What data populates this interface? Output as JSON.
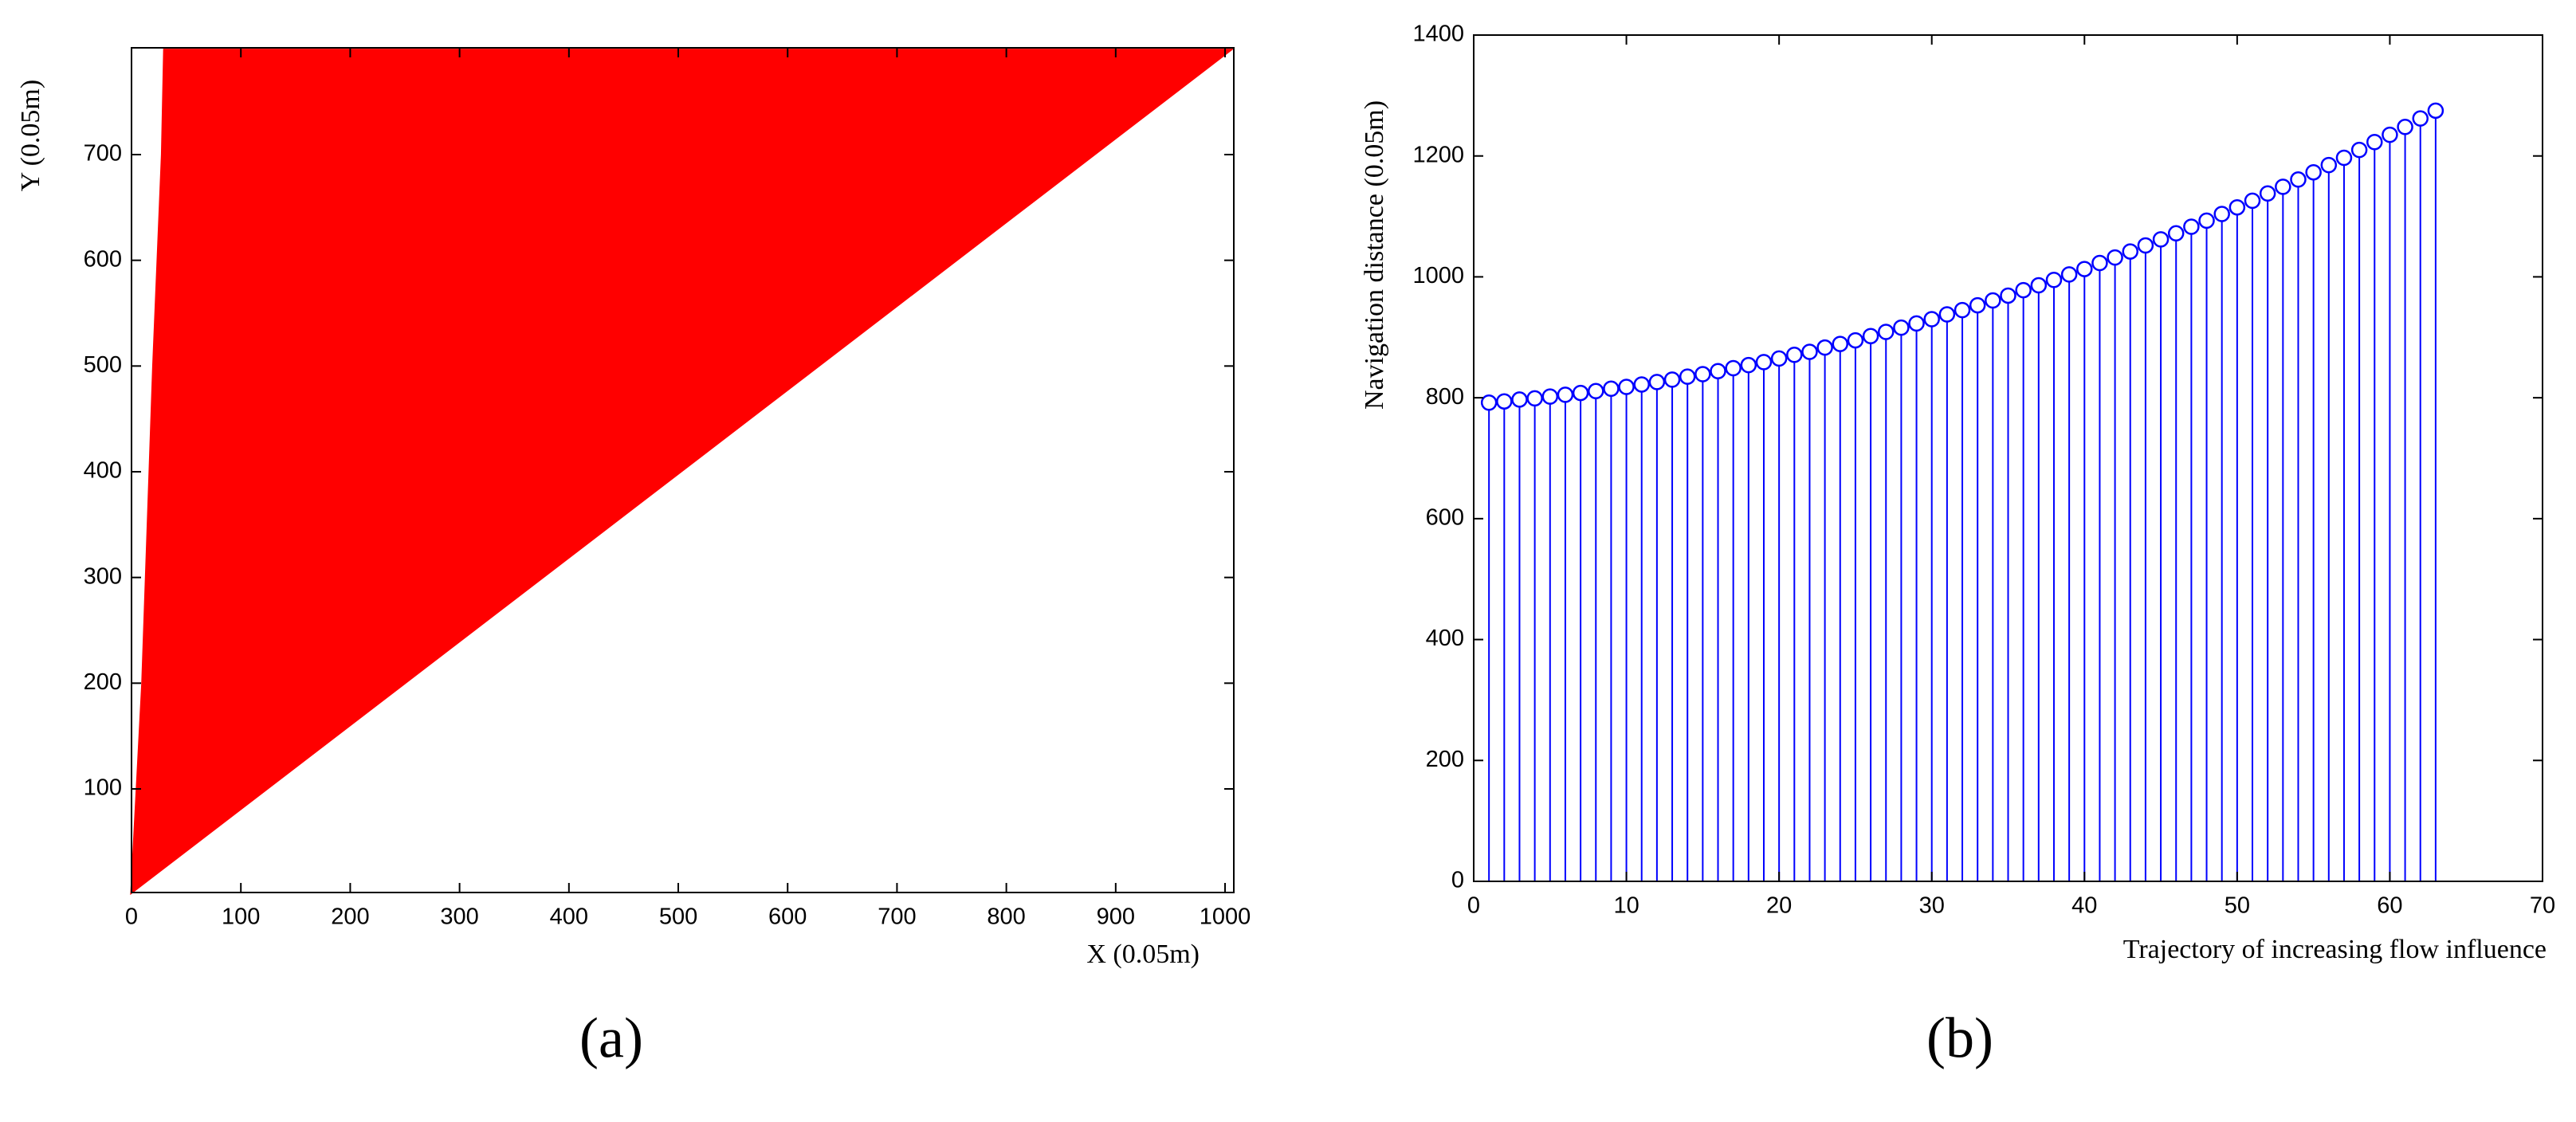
{
  "chart_data": [
    {
      "type": "area",
      "panel_label": "(a)",
      "x_label": "X (0.05m)",
      "y_label": "Y (0.05m)",
      "color": "#ff0000",
      "x": [
        0,
        10,
        20,
        28,
        30,
        1005,
        0
      ],
      "values": [
        2,
        200,
        500,
        700,
        799,
        799,
        2
      ],
      "xlim": [
        0,
        1008
      ],
      "ylim": [
        2,
        801
      ],
      "xticks": [
        0,
        100,
        200,
        300,
        400,
        500,
        600,
        700,
        800,
        900,
        1000
      ],
      "yticks": [
        100,
        200,
        300,
        400,
        500,
        600,
        700
      ]
    },
    {
      "type": "stem",
      "panel_label": "(b)",
      "x_label": "Trajectory of increasing flow influence",
      "y_label": "Navigation distance (0.05m)",
      "color": "#0000ff",
      "x": [
        1,
        2,
        3,
        4,
        5,
        6,
        7,
        8,
        9,
        10,
        11,
        12,
        13,
        14,
        15,
        16,
        17,
        18,
        19,
        20,
        21,
        22,
        23,
        24,
        25,
        26,
        27,
        28,
        29,
        30,
        31,
        32,
        33,
        34,
        35,
        36,
        37,
        38,
        39,
        40,
        41,
        42,
        43,
        44,
        45,
        46,
        47,
        48,
        49,
        50,
        51,
        52,
        53,
        54,
        55,
        56,
        57,
        58,
        59,
        60,
        61,
        62,
        63
      ],
      "values": [
        792,
        794,
        797,
        799,
        802,
        805,
        808,
        811,
        815,
        818,
        822,
        826,
        830,
        835,
        839,
        844,
        849,
        854,
        859,
        865,
        871,
        876,
        883,
        889,
        895,
        902,
        909,
        916,
        923,
        930,
        938,
        945,
        953,
        961,
        969,
        978,
        986,
        995,
        1004,
        1013,
        1023,
        1032,
        1042,
        1052,
        1062,
        1072,
        1083,
        1093,
        1104,
        1115,
        1126,
        1138,
        1149,
        1161,
        1173,
        1185,
        1197,
        1210,
        1223,
        1235,
        1248,
        1262,
        1275
      ],
      "xlim": [
        0,
        70
      ],
      "ylim": [
        0,
        1400
      ],
      "xticks": [
        0,
        10,
        20,
        30,
        40,
        50,
        60,
        70
      ],
      "yticks": [
        0,
        200,
        400,
        600,
        800,
        1000,
        1200,
        1400
      ]
    }
  ]
}
